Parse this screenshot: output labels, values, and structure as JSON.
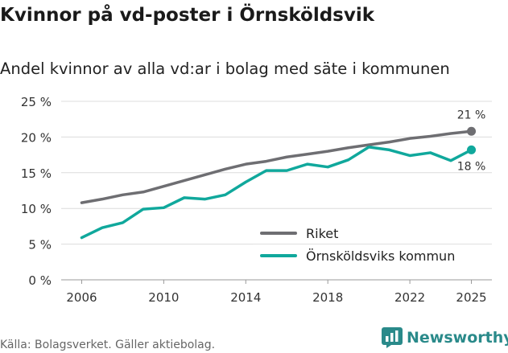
{
  "header": {
    "title": "Kvinnor på vd-poster i Örnsköldsvik",
    "subtitle": "Andel kvinnor av alla vd:ar i bolag med säte i kommunen"
  },
  "footer": {
    "source": "Källa: Bolagsverket. Gäller aktiebolag.",
    "brand": "Newsworthy"
  },
  "colors": {
    "riket": "#6e6e72",
    "kommun": "#10a89c",
    "brand": "#2a8a8a"
  },
  "chart_data": {
    "type": "line",
    "title": "Kvinnor på vd-poster i Örnsköldsvik",
    "subtitle": "Andel kvinnor av alla vd:ar i bolag med säte i kommunen",
    "xlabel": "",
    "ylabel": "",
    "x": [
      2006,
      2007,
      2008,
      2009,
      2010,
      2011,
      2012,
      2013,
      2014,
      2015,
      2016,
      2017,
      2018,
      2019,
      2020,
      2021,
      2022,
      2023,
      2024,
      2025
    ],
    "xlim": [
      2005,
      2026
    ],
    "ylim": [
      0,
      25
    ],
    "y_ticks": [
      0,
      5,
      10,
      15,
      20,
      25
    ],
    "y_tick_labels": [
      "0 %",
      "5 %",
      "10 %",
      "15 %",
      "20 %",
      "25 %"
    ],
    "x_ticks": [
      2006,
      2010,
      2014,
      2018,
      2022,
      2025
    ],
    "x_tick_labels": [
      "2006",
      "2010",
      "2014",
      "2018",
      "2022",
      "2025"
    ],
    "grid": true,
    "legend_position": "bottom-right",
    "series": [
      {
        "name": "Riket",
        "values": [
          10.8,
          11.3,
          11.9,
          12.3,
          13.1,
          13.9,
          14.7,
          15.5,
          16.2,
          16.6,
          17.2,
          17.6,
          18.0,
          18.5,
          18.9,
          19.3,
          19.8,
          20.1,
          20.5,
          20.8
        ],
        "end_label": "21 %"
      },
      {
        "name": "Örnsköldsviks kommun",
        "values": [
          5.9,
          7.3,
          8.0,
          9.9,
          10.1,
          11.5,
          11.3,
          11.9,
          13.7,
          15.3,
          15.3,
          16.2,
          15.8,
          16.8,
          18.6,
          18.2,
          17.4,
          17.8,
          16.7,
          18.2
        ],
        "end_label": "18 %"
      }
    ]
  }
}
